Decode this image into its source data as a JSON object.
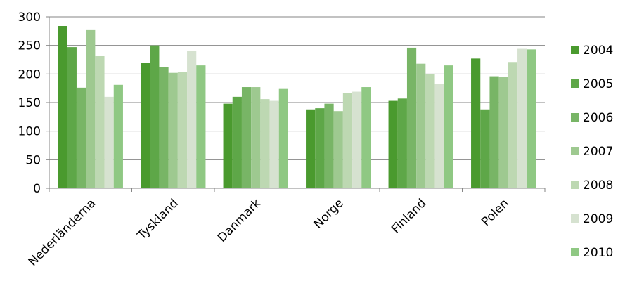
{
  "chart_data": {
    "type": "bar",
    "title": "",
    "xlabel": "",
    "ylabel": "",
    "ylim": [
      0,
      300
    ],
    "yticks": [
      0,
      50,
      100,
      150,
      200,
      250,
      300
    ],
    "grid": true,
    "legend_position": "right",
    "categories": [
      "Nederländerna",
      "Tyskland",
      "Danmark",
      "Norge",
      "Finland",
      "Polen"
    ],
    "series": [
      {
        "name": "2004",
        "color": "#4a9a2e",
        "values": [
          284,
          219,
          148,
          138,
          153,
          227
        ]
      },
      {
        "name": "2005",
        "color": "#5ea748",
        "values": [
          247,
          250,
          160,
          140,
          157,
          138
        ]
      },
      {
        "name": "2006",
        "color": "#78b566",
        "values": [
          176,
          212,
          177,
          148,
          246,
          196
        ]
      },
      {
        "name": "2007",
        "color": "#9ec990",
        "values": [
          278,
          202,
          177,
          135,
          218,
          195
        ]
      },
      {
        "name": "2008",
        "color": "#bdd8b2",
        "values": [
          232,
          203,
          156,
          167,
          200,
          221
        ]
      },
      {
        "name": "2009",
        "color": "#d6e2d0",
        "values": [
          160,
          241,
          153,
          169,
          182,
          244
        ]
      },
      {
        "name": "2010",
        "color": "#8fc883",
        "values": [
          181,
          215,
          175,
          177,
          215,
          243
        ]
      }
    ]
  }
}
